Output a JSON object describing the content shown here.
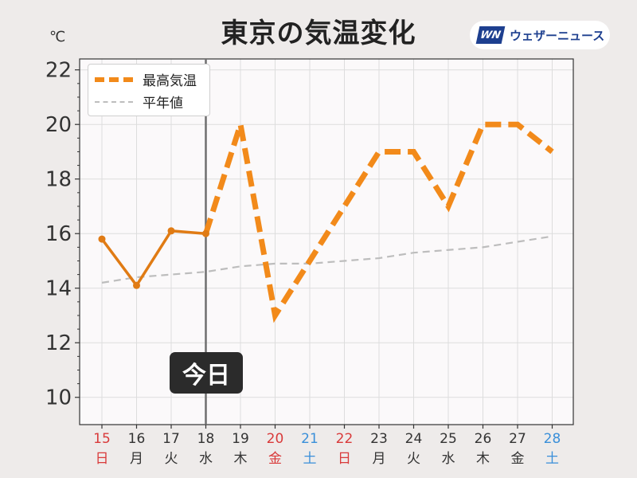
{
  "header": {
    "title": "東京の気温変化",
    "unit": "℃"
  },
  "logo": {
    "mark": "WN",
    "text": "ウェザーニュース"
  },
  "legend": {
    "max_label": "最高気温",
    "avg_label": "平年値"
  },
  "today_label": "今日",
  "colors": {
    "max_line": "#f28a1a",
    "observed_line": "#e07b14",
    "avg_line": "#bdbdbd",
    "today_line": "#6f6f6f",
    "sunday_red": "#d93a3a",
    "saturday_blue": "#3a8fd9",
    "weekday": "#333333",
    "plot_bg": "#fbf9fa",
    "grid": "#dddddd"
  },
  "chart_data": {
    "type": "line",
    "title": "東京の気温変化",
    "ylabel": "℃",
    "ylim": [
      9,
      22.4
    ],
    "yticks": [
      10,
      12,
      14,
      16,
      18,
      20,
      22
    ],
    "grid": true,
    "legend_position": "top-left",
    "today_index": 3,
    "categories": [
      "15",
      "16",
      "17",
      "18",
      "19",
      "20",
      "21",
      "22",
      "23",
      "24",
      "25",
      "26",
      "27",
      "28"
    ],
    "weekdays": [
      "日",
      "月",
      "火",
      "水",
      "木",
      "金",
      "土",
      "日",
      "月",
      "火",
      "水",
      "木",
      "金",
      "土"
    ],
    "day_colors": [
      "red",
      "default",
      "default",
      "default",
      "default",
      "red",
      "blue",
      "red",
      "default",
      "default",
      "default",
      "default",
      "default",
      "blue"
    ],
    "series": [
      {
        "name": "最高気温",
        "values": [
          15.8,
          14.1,
          16.1,
          16.0,
          20.0,
          13.0,
          15.0,
          17.0,
          19.0,
          19.0,
          17.0,
          20.0,
          20.0,
          19.0
        ],
        "observed_until_index": 3
      },
      {
        "name": "平年値",
        "values": [
          14.2,
          14.4,
          14.5,
          14.6,
          14.8,
          14.9,
          14.9,
          15.0,
          15.1,
          15.3,
          15.4,
          15.5,
          15.7,
          15.9
        ]
      }
    ]
  }
}
